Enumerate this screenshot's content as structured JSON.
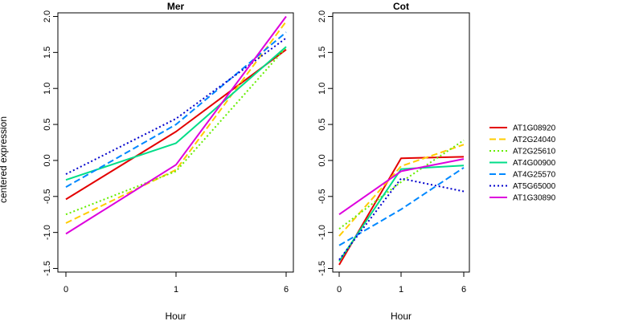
{
  "chart_data": [
    {
      "type": "line",
      "title": "Mer",
      "xlabel": "Hour",
      "ylabel": "centered expression",
      "categories": [
        "0",
        "1",
        "6"
      ],
      "yticks": [
        "-1.5",
        "-1.0",
        "-0.5",
        "0.0",
        "0.5",
        "1.0",
        "1.5",
        "2.0"
      ],
      "ylim": [
        -1.55,
        2.05
      ],
      "grid": false,
      "series": [
        {
          "name": "AT1G08920",
          "color": "#e30000",
          "dash": "solid",
          "values": [
            -0.54,
            0.4,
            1.54
          ]
        },
        {
          "name": "AT2G24040",
          "color": "#ffcc00",
          "dash": "dashed",
          "values": [
            -0.87,
            -0.13,
            1.93
          ]
        },
        {
          "name": "AT2G25610",
          "color": "#66ee00",
          "dash": "dotted",
          "values": [
            -0.75,
            -0.15,
            1.57
          ]
        },
        {
          "name": "AT4G00900",
          "color": "#00dd88",
          "dash": "solid",
          "values": [
            -0.27,
            0.24,
            1.58
          ]
        },
        {
          "name": "AT4G25570",
          "color": "#0088ff",
          "dash": "dashed",
          "values": [
            -0.37,
            0.5,
            1.78
          ]
        },
        {
          "name": "AT5G65000",
          "color": "#0000cc",
          "dash": "dotted",
          "values": [
            -0.19,
            0.58,
            1.7
          ]
        },
        {
          "name": "AT1G30890",
          "color": "#dd00dd",
          "dash": "solid",
          "values": [
            -1.02,
            -0.06,
            2.0
          ]
        }
      ]
    },
    {
      "type": "line",
      "title": "Cot",
      "xlabel": "Hour",
      "ylabel": "",
      "categories": [
        "0",
        "1",
        "6"
      ],
      "yticks": [
        "-1.5",
        "-1.0",
        "-0.5",
        "0.0",
        "0.5",
        "1.0",
        "1.5",
        "2.0"
      ],
      "ylim": [
        -1.55,
        2.05
      ],
      "grid": false,
      "series": [
        {
          "name": "AT1G08920",
          "color": "#e30000",
          "dash": "solid",
          "values": [
            -1.45,
            0.03,
            0.05
          ]
        },
        {
          "name": "AT2G24040",
          "color": "#ffcc00",
          "dash": "dashed",
          "values": [
            -1.05,
            -0.08,
            0.22
          ]
        },
        {
          "name": "AT2G25610",
          "color": "#66ee00",
          "dash": "dotted",
          "values": [
            -0.95,
            -0.3,
            0.28
          ]
        },
        {
          "name": "AT4G00900",
          "color": "#00dd88",
          "dash": "solid",
          "values": [
            -1.4,
            -0.12,
            -0.07
          ]
        },
        {
          "name": "AT4G25570",
          "color": "#0088ff",
          "dash": "dashed",
          "values": [
            -1.18,
            -0.68,
            -0.1
          ]
        },
        {
          "name": "AT5G65000",
          "color": "#0000cc",
          "dash": "dotted",
          "values": [
            -1.38,
            -0.25,
            -0.43
          ]
        },
        {
          "name": "AT1G30890",
          "color": "#dd00dd",
          "dash": "solid",
          "values": [
            -0.75,
            -0.15,
            0.02
          ]
        }
      ]
    }
  ],
  "legend": {
    "placement": "right",
    "items": [
      {
        "name": "AT1G08920",
        "color": "#e30000",
        "dash": "solid"
      },
      {
        "name": "AT2G24040",
        "color": "#ffcc00",
        "dash": "dashed"
      },
      {
        "name": "AT2G25610",
        "color": "#66ee00",
        "dash": "dotted"
      },
      {
        "name": "AT4G00900",
        "color": "#00dd88",
        "dash": "solid"
      },
      {
        "name": "AT4G25570",
        "color": "#0088ff",
        "dash": "dashed"
      },
      {
        "name": "AT5G65000",
        "color": "#0000cc",
        "dash": "dotted"
      },
      {
        "name": "AT1G30890",
        "color": "#dd00dd",
        "dash": "solid"
      }
    ]
  }
}
